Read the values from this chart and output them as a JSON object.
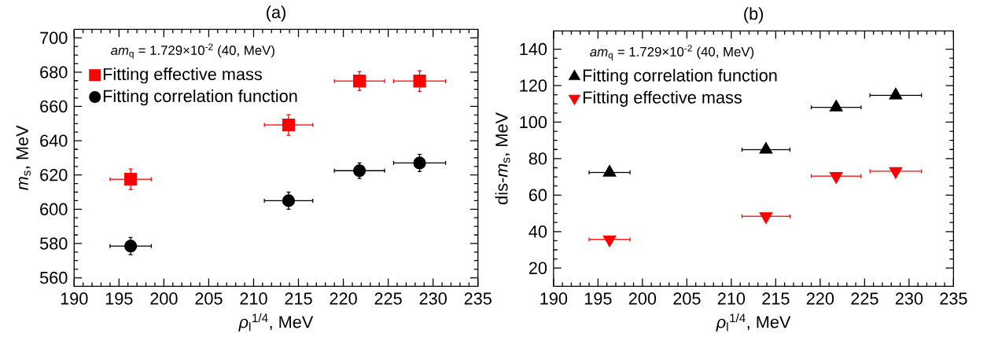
{
  "chart_data": [
    {
      "type": "scatter",
      "title": "(a)",
      "xlabel": "*ρ*$_{l}$$^{1/4}$, MeV",
      "ylabel": "*m*$_{s}$, MeV",
      "annotations": [
        "*am*$_{q}$ = 1.729×10$^{-2}$ (40, MeV)"
      ],
      "legend": "top left",
      "xlim": [
        190,
        235
      ],
      "ylim": [
        555,
        705
      ],
      "xticks": [
        190,
        195,
        200,
        205,
        210,
        215,
        220,
        225,
        230,
        235
      ],
      "yticks": [
        560,
        580,
        600,
        620,
        640,
        660,
        680,
        700
      ],
      "series": [
        {
          "name": "Fitting effective mass",
          "color": "#ff0000",
          "marker": "square",
          "x": [
            196.3,
            213.9,
            221.8,
            228.5
          ],
          "values": [
            617.5,
            649.2,
            674.8,
            674.8
          ],
          "errors": [
            6,
            6,
            5.5,
            6
          ],
          "xerrors": [
            2.3,
            2.7,
            2.8,
            2.9
          ]
        },
        {
          "name": "Fitting correlation function",
          "color": "#000000",
          "marker": "circle",
          "x": [
            196.3,
            213.9,
            221.8,
            228.5
          ],
          "values": [
            578.5,
            605,
            622.5,
            627
          ],
          "errors": [
            5,
            5,
            4.5,
            5
          ],
          "xerrors": [
            2.3,
            2.7,
            2.8,
            2.9
          ]
        }
      ]
    },
    {
      "type": "scatter",
      "title": "(b)",
      "xlabel": "*ρ*$_{l}$$^{1/4}$, MeV",
      "ylabel": "dis-*m*$_{s}$, MeV",
      "annotations": [
        "*am*$_{q}$ = 1.729×10$^{-2}$ (40, MeV)"
      ],
      "legend": "top left",
      "xlim": [
        190,
        235
      ],
      "ylim": [
        10,
        150
      ],
      "xticks": [
        190,
        195,
        200,
        205,
        210,
        215,
        220,
        225,
        230,
        235
      ],
      "yticks": [
        20,
        40,
        60,
        80,
        100,
        120,
        140
      ],
      "series": [
        {
          "name": "Fitting correlation function",
          "color": "#000000",
          "marker": "triangle",
          "x": [
            196.3,
            213.9,
            221.8,
            228.5
          ],
          "values": [
            72.4,
            84.9,
            108.1,
            114.7
          ],
          "xerrors": [
            2.3,
            2.7,
            2.8,
            2.9
          ]
        },
        {
          "name": "Fitting effective mass",
          "color": "#ff0000",
          "marker": "triangle-down",
          "x": [
            196.3,
            213.9,
            221.8,
            228.5
          ],
          "values": [
            35.7,
            48.4,
            70.4,
            73.1
          ],
          "xerrors": [
            2.3,
            2.7,
            2.8,
            2.9
          ]
        }
      ]
    }
  ]
}
